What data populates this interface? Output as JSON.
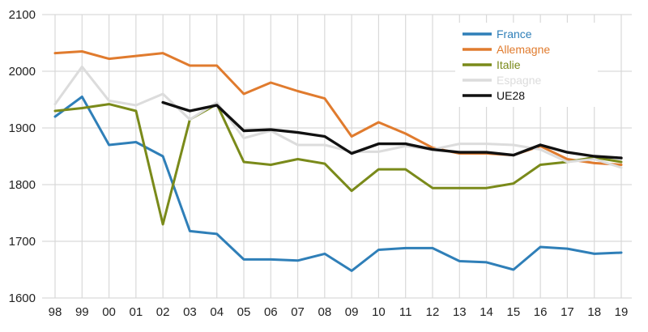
{
  "chart_data": {
    "type": "line",
    "title": "",
    "xlabel": "",
    "ylabel": "",
    "categories": [
      "98",
      "99",
      "00",
      "01",
      "02",
      "03",
      "04",
      "05",
      "06",
      "07",
      "08",
      "09",
      "10",
      "11",
      "12",
      "13",
      "14",
      "15",
      "16",
      "17",
      "18",
      "19"
    ],
    "ylim": [
      1600,
      2100
    ],
    "yticks": [
      1600,
      1700,
      1800,
      1900,
      2000,
      2100
    ],
    "grid": true,
    "legend_position": "top-right",
    "series": [
      {
        "name": "France",
        "color": "#2f7fb8",
        "values": [
          1920,
          1955,
          1870,
          1875,
          1850,
          1718,
          1713,
          1668,
          1668,
          1666,
          1678,
          1648,
          1685,
          1688,
          1688,
          1665,
          1663,
          1650,
          1690,
          1687,
          1678,
          1680
        ]
      },
      {
        "name": "Allemagne",
        "color": "#e07b2e",
        "values": [
          2032,
          2035,
          2022,
          2027,
          2032,
          2010,
          2010,
          1960,
          1980,
          1965,
          1952,
          1885,
          1910,
          1890,
          1865,
          1855,
          1855,
          1852,
          1868,
          1845,
          1838,
          1835
        ]
      },
      {
        "name": "Italie",
        "color": "#7a8a1a",
        "values": [
          1930,
          1935,
          1942,
          1930,
          1730,
          1915,
          1942,
          1840,
          1835,
          1845,
          1837,
          1789,
          1827,
          1827,
          1794,
          1794,
          1794,
          1802,
          1835,
          1840,
          1848,
          1840
        ]
      },
      {
        "name": "Espagne",
        "color": "#dcdcdc",
        "values": [
          1942,
          2008,
          1948,
          1940,
          1960,
          1915,
          1945,
          1882,
          1895,
          1870,
          1870,
          1858,
          1858,
          1868,
          1862,
          1872,
          1872,
          1870,
          1862,
          1840,
          1845,
          1830
        ]
      },
      {
        "name": "UE28",
        "color": "#111111",
        "values": [
          null,
          null,
          null,
          null,
          1945,
          1930,
          1940,
          1895,
          1897,
          1892,
          1885,
          1855,
          1872,
          1872,
          1862,
          1857,
          1857,
          1852,
          1870,
          1857,
          1850,
          1847
        ]
      }
    ]
  }
}
